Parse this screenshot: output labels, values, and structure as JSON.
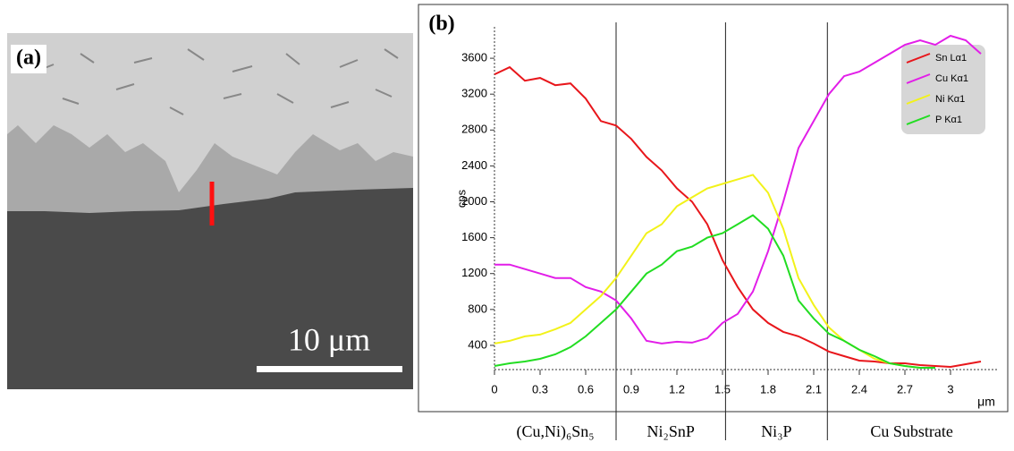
{
  "panel_a": {
    "label": "(a)",
    "scale_bar": "10 μm"
  },
  "chart_data": {
    "type": "line",
    "panel_label": "(b)",
    "y_label": "cps",
    "x_label": "μm",
    "x": [
      0,
      0.1,
      0.2,
      0.3,
      0.4,
      0.5,
      0.6,
      0.7,
      0.8,
      0.9,
      1.0,
      1.1,
      1.2,
      1.3,
      1.4,
      1.5,
      1.6,
      1.7,
      1.8,
      1.9,
      2.0,
      2.1,
      2.2,
      2.3,
      2.4,
      2.5,
      2.6,
      2.7,
      2.8,
      2.9,
      3.0,
      3.1,
      3.2
    ],
    "series": [
      {
        "name": "Sn Lα1",
        "color": "#e8161b",
        "values": [
          3420,
          3500,
          3350,
          3380,
          3300,
          3320,
          3150,
          2900,
          2850,
          2700,
          2500,
          2350,
          2150,
          2000,
          1750,
          1350,
          1050,
          800,
          650,
          550,
          500,
          420,
          330,
          280,
          230,
          220,
          200,
          200,
          180,
          170,
          160,
          190,
          220
        ]
      },
      {
        "name": "Cu Kα1",
        "color": "#e21ee8",
        "values": [
          1300,
          1300,
          1250,
          1200,
          1150,
          1150,
          1050,
          1000,
          900,
          700,
          450,
          420,
          440,
          430,
          480,
          650,
          750,
          1000,
          1450,
          2000,
          2600,
          2900,
          3200,
          3400,
          3450,
          3550,
          3650,
          3750,
          3800,
          3750,
          3850,
          3800,
          3650
        ]
      },
      {
        "name": "Ni Kα1",
        "color": "#f2f21a",
        "values": [
          420,
          450,
          500,
          520,
          580,
          650,
          800,
          950,
          1150,
          1400,
          1650,
          1750,
          1950,
          2050,
          2150,
          2200,
          2250,
          2300,
          2100,
          1700,
          1150,
          850,
          600,
          450,
          350,
          250,
          200,
          170,
          150,
          150,
          null,
          null,
          null
        ]
      },
      {
        "name": "P Kα1",
        "color": "#22dd22",
        "values": [
          170,
          200,
          220,
          250,
          300,
          380,
          500,
          650,
          800,
          1000,
          1200,
          1300,
          1450,
          1500,
          1600,
          1650,
          1750,
          1850,
          1700,
          1400,
          900,
          700,
          530,
          450,
          350,
          280,
          200,
          170,
          150,
          150,
          null,
          null,
          null
        ]
      }
    ],
    "xlim": [
      0,
      3.3
    ],
    "ylim": [
      130,
      3950
    ],
    "xticks": [
      0,
      0.3,
      0.6,
      0.9,
      1.2,
      1.5,
      1.8,
      2.1,
      2.4,
      2.7,
      3
    ],
    "yticks": [
      400,
      800,
      1200,
      1600,
      2000,
      2400,
      2800,
      3200,
      3600
    ],
    "boundaries": [
      0.8,
      1.52,
      2.19
    ],
    "regions": [
      "(Cu,Ni)₆Sn₅",
      "Ni₂SnP",
      "Ni₃P",
      "Cu Substrate"
    ],
    "grid": false,
    "legend": "top-right"
  }
}
